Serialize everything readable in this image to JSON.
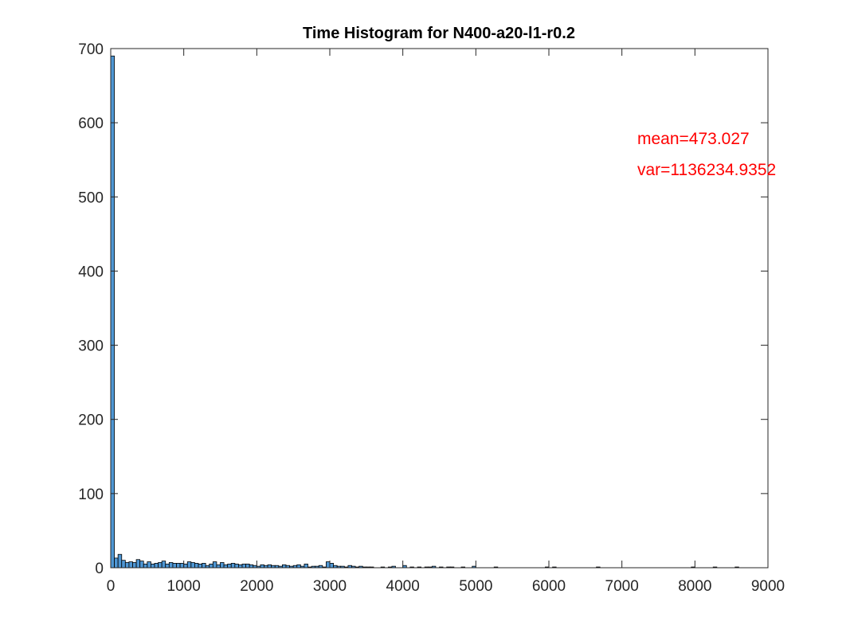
{
  "chart_data": {
    "type": "bar",
    "title": "Time Histogram for N400-a20-l1-r0.2",
    "xlabel": "",
    "ylabel": "",
    "xlim": [
      0,
      9000
    ],
    "ylim": [
      0,
      700
    ],
    "xticks": [
      0,
      1000,
      2000,
      3000,
      4000,
      5000,
      6000,
      7000,
      8000,
      9000
    ],
    "yticks": [
      0,
      100,
      200,
      300,
      400,
      500,
      600,
      700
    ],
    "grid": false,
    "legend": "none",
    "bin_width": 50,
    "bins": [
      {
        "x": 0,
        "count": 690
      },
      {
        "x": 50,
        "count": 13
      },
      {
        "x": 100,
        "count": 18
      },
      {
        "x": 150,
        "count": 10
      },
      {
        "x": 200,
        "count": 7
      },
      {
        "x": 250,
        "count": 8
      },
      {
        "x": 300,
        "count": 7
      },
      {
        "x": 350,
        "count": 11
      },
      {
        "x": 400,
        "count": 9
      },
      {
        "x": 450,
        "count": 5
      },
      {
        "x": 500,
        "count": 8
      },
      {
        "x": 550,
        "count": 5
      },
      {
        "x": 600,
        "count": 6
      },
      {
        "x": 650,
        "count": 7
      },
      {
        "x": 700,
        "count": 9
      },
      {
        "x": 750,
        "count": 5
      },
      {
        "x": 800,
        "count": 7
      },
      {
        "x": 850,
        "count": 6
      },
      {
        "x": 900,
        "count": 6
      },
      {
        "x": 950,
        "count": 6
      },
      {
        "x": 1000,
        "count": 5
      },
      {
        "x": 1050,
        "count": 8
      },
      {
        "x": 1100,
        "count": 7
      },
      {
        "x": 1150,
        "count": 6
      },
      {
        "x": 1200,
        "count": 5
      },
      {
        "x": 1250,
        "count": 6
      },
      {
        "x": 1300,
        "count": 3
      },
      {
        "x": 1350,
        "count": 5
      },
      {
        "x": 1400,
        "count": 8
      },
      {
        "x": 1450,
        "count": 4
      },
      {
        "x": 1500,
        "count": 7
      },
      {
        "x": 1550,
        "count": 4
      },
      {
        "x": 1600,
        "count": 5
      },
      {
        "x": 1650,
        "count": 6
      },
      {
        "x": 1700,
        "count": 5
      },
      {
        "x": 1750,
        "count": 4
      },
      {
        "x": 1800,
        "count": 5
      },
      {
        "x": 1850,
        "count": 5
      },
      {
        "x": 1900,
        "count": 4
      },
      {
        "x": 1950,
        "count": 3
      },
      {
        "x": 2000,
        "count": 2
      },
      {
        "x": 2050,
        "count": 4
      },
      {
        "x": 2100,
        "count": 3
      },
      {
        "x": 2150,
        "count": 4
      },
      {
        "x": 2200,
        "count": 3
      },
      {
        "x": 2250,
        "count": 3
      },
      {
        "x": 2300,
        "count": 2
      },
      {
        "x": 2350,
        "count": 4
      },
      {
        "x": 2400,
        "count": 3
      },
      {
        "x": 2450,
        "count": 2
      },
      {
        "x": 2500,
        "count": 3
      },
      {
        "x": 2550,
        "count": 4
      },
      {
        "x": 2600,
        "count": 2
      },
      {
        "x": 2650,
        "count": 5
      },
      {
        "x": 2700,
        "count": 1
      },
      {
        "x": 2750,
        "count": 2
      },
      {
        "x": 2800,
        "count": 2
      },
      {
        "x": 2850,
        "count": 3
      },
      {
        "x": 2900,
        "count": 1
      },
      {
        "x": 2950,
        "count": 8
      },
      {
        "x": 3000,
        "count": 6
      },
      {
        "x": 3050,
        "count": 3
      },
      {
        "x": 3100,
        "count": 2
      },
      {
        "x": 3150,
        "count": 2
      },
      {
        "x": 3200,
        "count": 1
      },
      {
        "x": 3250,
        "count": 3
      },
      {
        "x": 3300,
        "count": 2
      },
      {
        "x": 3350,
        "count": 1
      },
      {
        "x": 3400,
        "count": 2
      },
      {
        "x": 3450,
        "count": 1
      },
      {
        "x": 3500,
        "count": 1
      },
      {
        "x": 3550,
        "count": 1
      },
      {
        "x": 3700,
        "count": 1
      },
      {
        "x": 3800,
        "count": 1
      },
      {
        "x": 3850,
        "count": 2
      },
      {
        "x": 4000,
        "count": 3
      },
      {
        "x": 4100,
        "count": 1
      },
      {
        "x": 4200,
        "count": 1
      },
      {
        "x": 4300,
        "count": 1
      },
      {
        "x": 4350,
        "count": 1
      },
      {
        "x": 4400,
        "count": 2
      },
      {
        "x": 4500,
        "count": 1
      },
      {
        "x": 4600,
        "count": 1
      },
      {
        "x": 4650,
        "count": 1
      },
      {
        "x": 4800,
        "count": 1
      },
      {
        "x": 4950,
        "count": 2
      },
      {
        "x": 5250,
        "count": 1
      },
      {
        "x": 5950,
        "count": 1
      },
      {
        "x": 6050,
        "count": 1
      },
      {
        "x": 6650,
        "count": 1
      },
      {
        "x": 7950,
        "count": 1
      },
      {
        "x": 8250,
        "count": 1
      },
      {
        "x": 8550,
        "count": 1
      }
    ],
    "annotations": [
      "mean=473.027",
      "var=1136234.9352"
    ],
    "colors": {
      "bar_fill": "#4f97d4",
      "bar_edge": "#000000",
      "annotation": "#ff0000",
      "axes": "#262626"
    }
  }
}
